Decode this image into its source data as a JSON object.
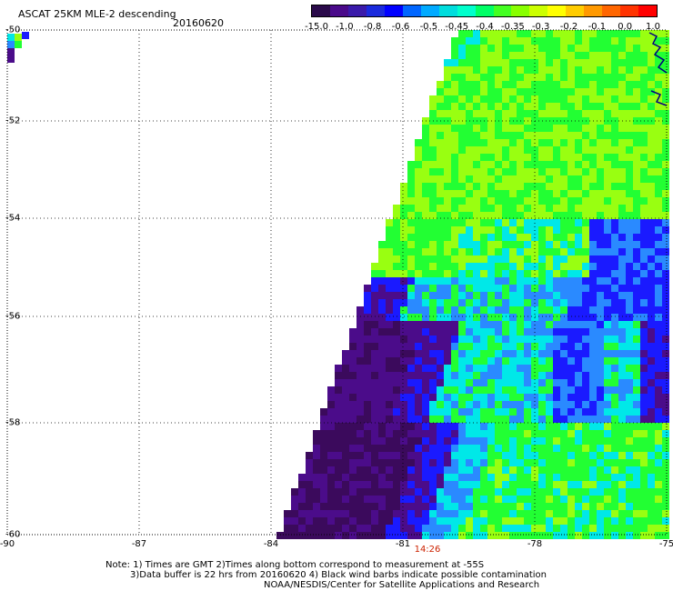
{
  "header": {
    "title": "ASCAT 25KM MLE-2 descending",
    "date": "20160620"
  },
  "colorbar": {
    "labels": [
      "-15.0",
      "-1.0",
      "-0.8",
      "-0.6",
      "-0.5",
      "-0.45",
      "-0.4",
      "-0.35",
      "-0.3",
      "-0.2",
      "-0.1",
      "0.0",
      "1.0"
    ],
    "colors": [
      "#2a0a4a",
      "#4a0a8a",
      "#3a1aaa",
      "#1a2add",
      "#0000ff",
      "#0066ff",
      "#00aaff",
      "#00dddd",
      "#00ffcc",
      "#00ff66",
      "#44ff22",
      "#88ff00",
      "#ccff00",
      "#ffff00",
      "#ffcc00",
      "#ff9900",
      "#ff6600",
      "#ff3300",
      "#ff0000"
    ]
  },
  "axes": {
    "lat_labels": [
      "-50",
      "-52",
      "-54",
      "-56",
      "-58",
      "-60"
    ],
    "lon_labels": [
      "-90",
      "-87",
      "-84",
      "-81",
      "-78",
      "-75"
    ],
    "time_label": "14:26"
  },
  "notes": {
    "line1": "Note: 1) Times are GMT 2)Times along bottom correspond to measurement at -55S",
    "line2": "3)Data buffer is 22 hrs from 20160620 4) Black wind barbs indicate possible contamination",
    "line3": "NOAA/NESDIS/Center for Satellite Applications and Research"
  },
  "palette": {
    "deep_purple": "#3b0a5c",
    "purple": "#4b0c8a",
    "blue": "#1a1aff",
    "light_blue": "#2a8aff",
    "cyan": "#00e8e8",
    "green": "#22ff33",
    "lime": "#99ff11",
    "coast": "#000080"
  }
}
